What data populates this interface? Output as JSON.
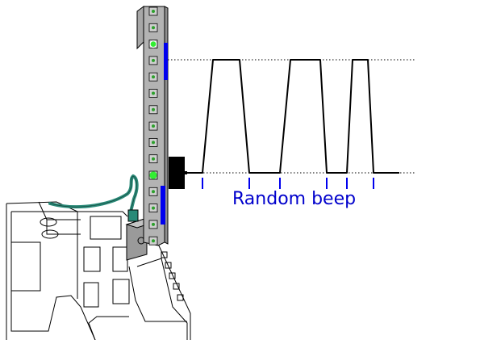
{
  "diagram": {
    "caption": "Random beep",
    "colors": {
      "outline": "#000000",
      "strip": "#b3b3b3",
      "strip_dark": "#8f8f8f",
      "led_on": "#33ee33",
      "led_off": "#2ca02c",
      "marker": "#0000ee",
      "cable": "#2a8a78",
      "caption": "#0000cc",
      "buzzer": "#000000",
      "background": "#ffffff"
    },
    "led_count": 15,
    "lit_leds": [
      3,
      11
    ],
    "waveform": {
      "levels": [
        "low",
        "high"
      ],
      "pulses": 3
    }
  }
}
